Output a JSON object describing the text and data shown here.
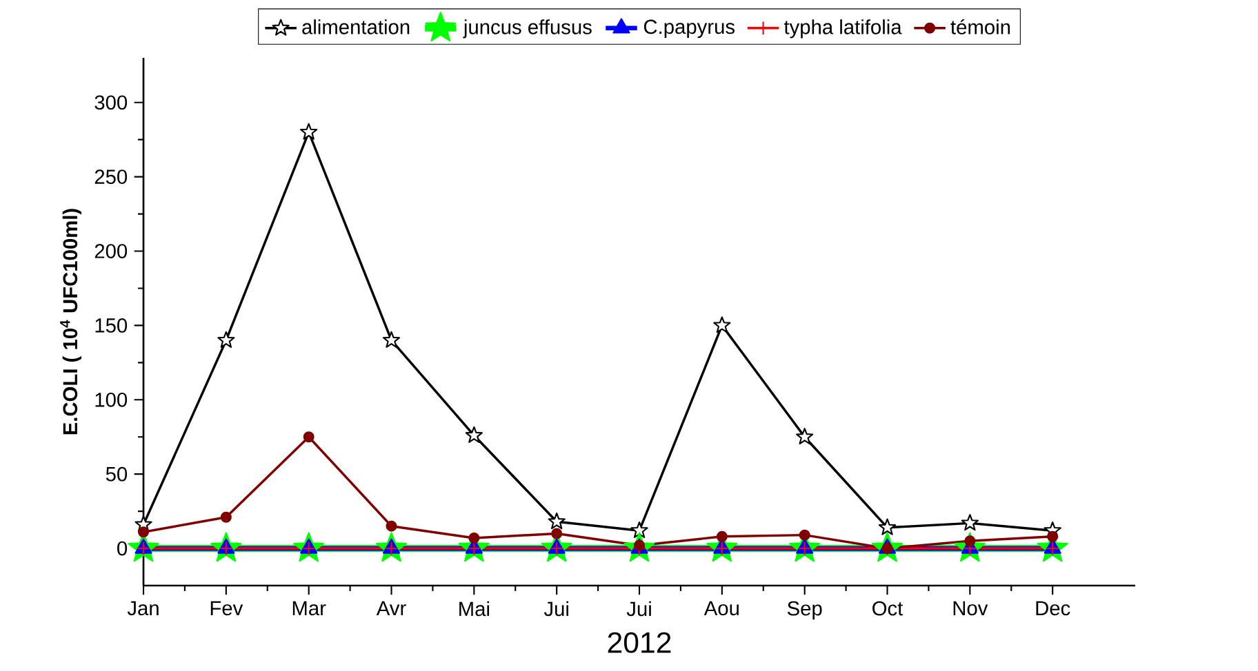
{
  "chart_data": {
    "type": "line",
    "xlabel": "2012",
    "ylabel": "E.COLI ( 10$^{4}$ UFC100ml)",
    "categories": [
      "Jan",
      "Fev",
      "Mar",
      "Avr",
      "Mai",
      "Jui",
      "Jui",
      "Aou",
      "Sep",
      "Oct",
      "Nov",
      "Dec"
    ],
    "series": [
      {
        "name": "alimentation",
        "color": "#000000",
        "marker": "star",
        "values": [
          16,
          140,
          280,
          140,
          76,
          18,
          12,
          150,
          75,
          14,
          17,
          12
        ]
      },
      {
        "name": "juncus effusus",
        "color": "#00ff00",
        "marker": "star",
        "values": [
          0,
          0,
          0,
          0,
          0,
          0,
          0,
          0,
          0,
          0,
          0,
          0
        ]
      },
      {
        "name": "C.papyrus",
        "color": "#0000ff",
        "marker": "triangle",
        "values": [
          0,
          0,
          0,
          0,
          0,
          0,
          0,
          0,
          0,
          0,
          0,
          0
        ]
      },
      {
        "name": "typha latifolia",
        "color": "#ff0000",
        "marker": "cross",
        "values": [
          0,
          0,
          0,
          0,
          0,
          0,
          0,
          0,
          0,
          0,
          0,
          0
        ]
      },
      {
        "name": "témoin",
        "color": "#800000",
        "marker": "circle",
        "values": [
          11,
          21,
          75,
          15,
          7,
          10,
          2,
          8,
          9,
          0,
          5,
          8
        ]
      }
    ],
    "ylim": [
      -25,
      330
    ],
    "yticks": [
      0,
      50,
      100,
      150,
      200,
      250,
      300
    ],
    "grid": false,
    "legend": "top",
    "line_style": "solid"
  }
}
